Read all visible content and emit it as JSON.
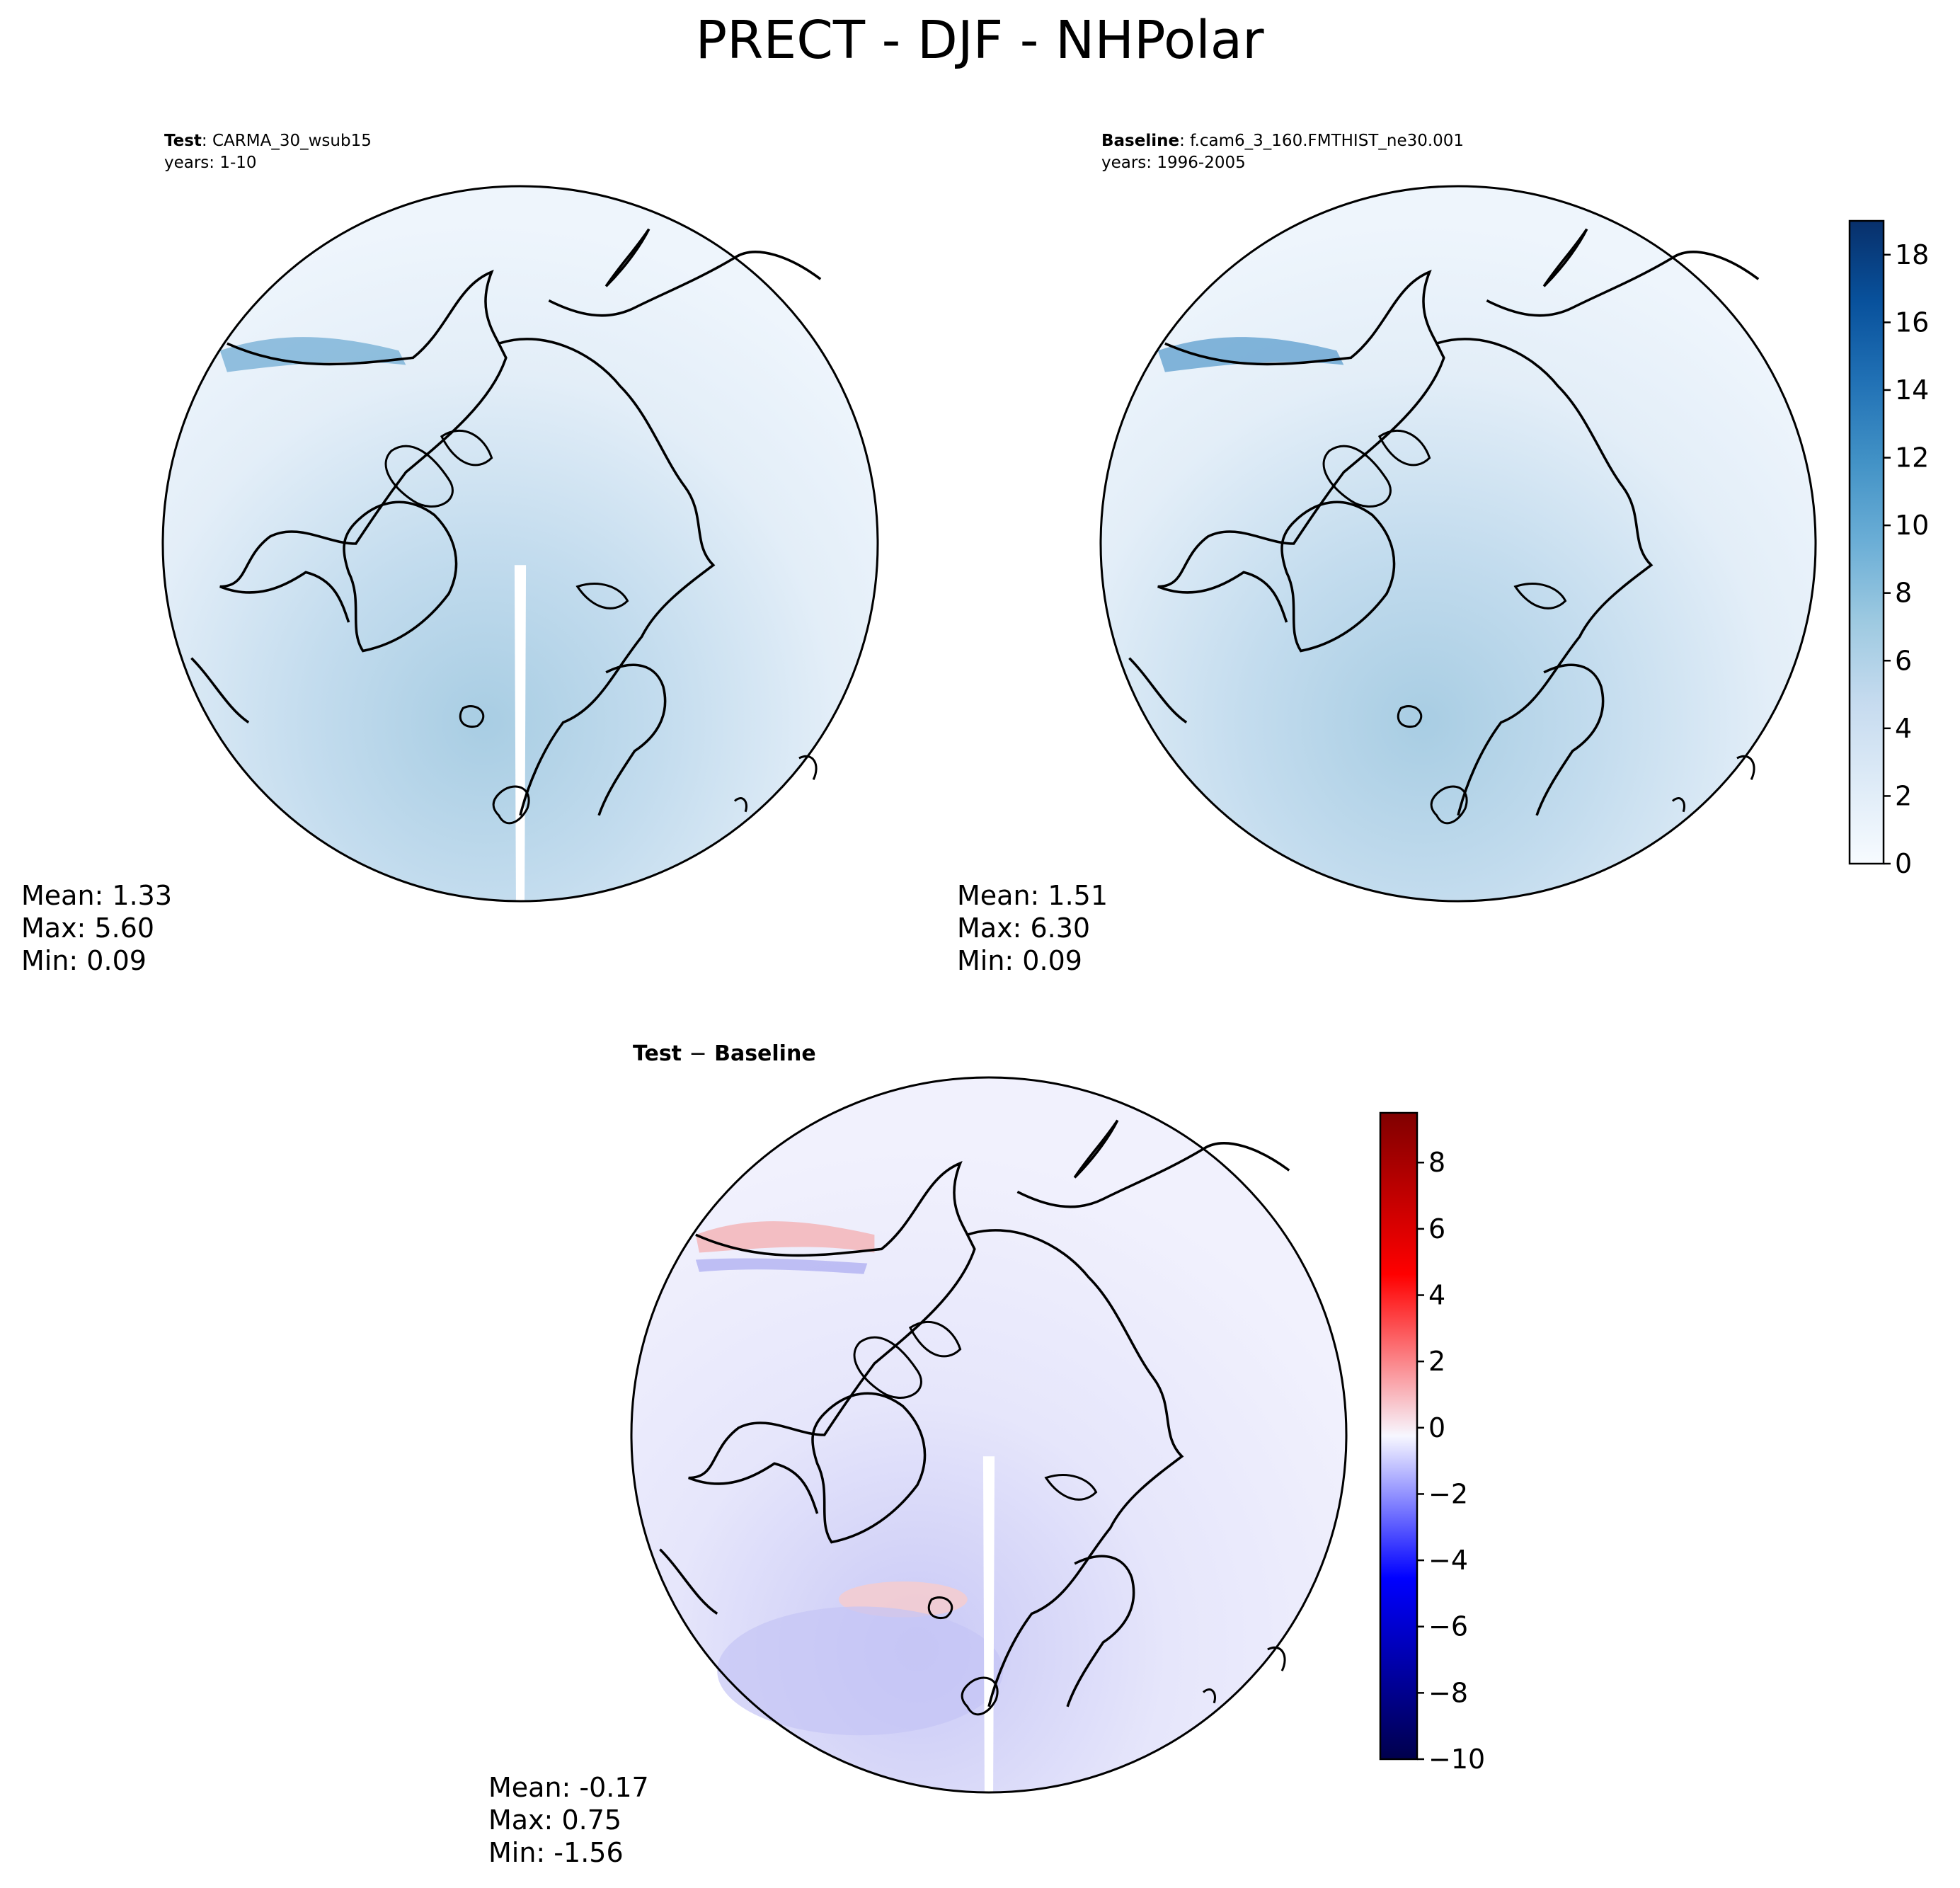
{
  "figure": {
    "title": "PRECT - DJF - NHPolar",
    "test_title_bold": "Test",
    "test_title_rest": ": CARMA_30_wsub15",
    "test_years": "years: 1-10",
    "baseline_title_bold": "Baseline",
    "baseline_title_rest": ": f.cam6_3_160.FMTHIST_ne30.001",
    "baseline_years": "years: 1996-2005",
    "diff_title_part1": "Test",
    "diff_title_minus": "−",
    "diff_title_part2": "Baseline"
  },
  "stats": {
    "test": {
      "mean": "Mean:  1.33",
      "max": "Max:  5.60",
      "min": "Min:  0.09"
    },
    "baseline": {
      "mean": "Mean:  1.51",
      "max": "Max:  6.30",
      "min": "Min:  0.09"
    },
    "diff": {
      "mean": "Mean: -0.17",
      "max": "Max:  0.75",
      "min": "Min: -1.56"
    }
  },
  "colors": {
    "blues": [
      "#f7fbff",
      "#deebf7",
      "#c6dbef",
      "#9ecae1",
      "#6baed6",
      "#4292c6",
      "#2171b5",
      "#08519c",
      "#08306b"
    ],
    "diverging": [
      "#00004c",
      "#0000ff",
      "#f7f7ff",
      "#ff0000",
      "#800000"
    ],
    "coastline": "#000000"
  },
  "chart_data": [
    {
      "type": "heatmap",
      "title": "Test : CARMA_30_wsub15",
      "subtitle": "years: 1-10",
      "projection": "north polar stereographic",
      "colorbar": {
        "ticks": [
          "0",
          "2",
          "4",
          "6",
          "8",
          "10",
          "12",
          "14",
          "16",
          "18"
        ],
        "range": [
          0,
          19
        ],
        "levels": 19
      },
      "stats": {
        "mean": 1.33,
        "max": 5.6,
        "min": 0.09
      }
    },
    {
      "type": "heatmap",
      "title": "Baseline : f.cam6_3_160.FMTHIST_ne30.001",
      "subtitle": "years: 1996-2005",
      "projection": "north polar stereographic",
      "colorbar": {
        "ticks": [
          "0",
          "2",
          "4",
          "6",
          "8",
          "10",
          "12",
          "14",
          "16",
          "18"
        ],
        "range": [
          0,
          19
        ],
        "levels": 19
      },
      "stats": {
        "mean": 1.51,
        "max": 6.3,
        "min": 0.09
      }
    },
    {
      "type": "heatmap",
      "title": "Test − Baseline",
      "projection": "north polar stereographic",
      "colorbar": {
        "ticks": [
          "8",
          "6",
          "4",
          "2",
          "0",
          "−2",
          "−4",
          "−6",
          "−8",
          "−10"
        ],
        "range": [
          -10,
          9.5
        ],
        "levels": 20
      },
      "stats": {
        "mean": -0.17,
        "max": 0.75,
        "min": -1.56
      }
    }
  ]
}
